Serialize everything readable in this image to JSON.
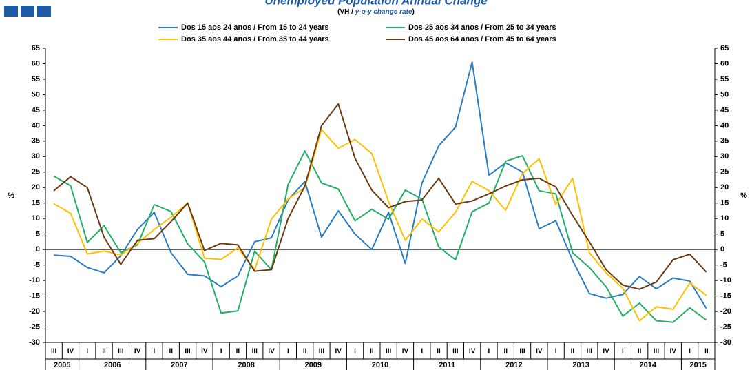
{
  "chart_data": {
    "type": "line",
    "title": "Unemployed Population Annual Change",
    "subtitle_prefix": "(VH / ",
    "subtitle_emph": "y-o-y change rate",
    "subtitle_suffix": ")",
    "ylabel": "%",
    "y2label": "%",
    "categories": [
      "III",
      "IV",
      "I",
      "II",
      "III",
      "IV",
      "I",
      "II",
      "III",
      "IV",
      "I",
      "II",
      "III",
      "IV",
      "I",
      "II",
      "III",
      "IV",
      "I",
      "II",
      "III",
      "IV",
      "I",
      "II",
      "III",
      "IV",
      "I",
      "II",
      "III",
      "IV",
      "I",
      "II",
      "III",
      "IV",
      "I",
      "II",
      "III",
      "IV",
      "I",
      "II"
    ],
    "year_groups": [
      {
        "label": "2005",
        "count": 2
      },
      {
        "label": "2006",
        "count": 4
      },
      {
        "label": "2007",
        "count": 4
      },
      {
        "label": "2008",
        "count": 4
      },
      {
        "label": "2009",
        "count": 4
      },
      {
        "label": "2010",
        "count": 4
      },
      {
        "label": "2011",
        "count": 4
      },
      {
        "label": "2012",
        "count": 4
      },
      {
        "label": "2013",
        "count": 4
      },
      {
        "label": "2014",
        "count": 4
      },
      {
        "label": "2015",
        "count": 2
      }
    ],
    "series": [
      {
        "name": "Dos 15 aos 24 anos / From 15 to 24 years",
        "color": "#2a7bc4",
        "values": [
          -1.8,
          -2.2,
          -5.8,
          -7.5,
          -2,
          6.5,
          12,
          -1,
          -8,
          -8.5,
          -12,
          -8.5,
          2.5,
          3.8,
          16,
          22,
          4,
          12.5,
          5,
          0,
          12,
          -4.5,
          21.5,
          33.5,
          39.5,
          60.5,
          24,
          28,
          25,
          6.7,
          9.3,
          -3.5,
          -14.2,
          -15.7,
          -14.5,
          -8.7,
          -12.7,
          -9.2,
          -10.2,
          -19
        ]
      },
      {
        "name": "Dos 25 aos 34 anos / From 25 to 34 years",
        "color": "#22b064",
        "values": [
          23.7,
          20.6,
          2.3,
          7.7,
          -1,
          1.5,
          14.5,
          12.3,
          1.8,
          -4,
          -20.5,
          -19.8,
          -0.5,
          -6.5,
          21,
          31.8,
          21.5,
          19.5,
          9.3,
          13,
          9.8,
          19.2,
          16.3,
          0.8,
          -3.3,
          12.2,
          15,
          28.5,
          30.3,
          19,
          18,
          -1,
          -5.8,
          -12,
          -21.5,
          -17.3,
          -23,
          -23.5,
          -18.8,
          -22.8
        ]
      },
      {
        "name": "Dos 35 aos 44 anos / From 35 to 44 years",
        "color": "#ffc000",
        "values": [
          14.8,
          11.7,
          -1.4,
          -0.5,
          -1.8,
          2,
          6.5,
          10.4,
          15,
          -2.8,
          -3.2,
          0.5,
          -6.5,
          9.8,
          16.3,
          20,
          38.7,
          32.7,
          35.5,
          31,
          15.5,
          3,
          9.8,
          5.7,
          12,
          22,
          19,
          12.7,
          24.5,
          29.3,
          14.5,
          23,
          -1,
          -7.5,
          -12.5,
          -23,
          -18.5,
          -19.3,
          -10.8,
          -14.8
        ]
      },
      {
        "name": "Dos 45 aos 64 anos / From 45 to 64 years",
        "color": "#6b3a12",
        "values": [
          19,
          23.5,
          20,
          4,
          -4.8,
          3,
          3.5,
          9,
          15,
          -0.3,
          2,
          1.5,
          -7,
          -6.5,
          10,
          20.5,
          40,
          47,
          29.5,
          19.2,
          13.5,
          15.5,
          16,
          23,
          14.7,
          15.7,
          18,
          20.5,
          22.5,
          23,
          20.2,
          11,
          2.5,
          -6.5,
          -11.5,
          -12.8,
          -10.5,
          -3.3,
          -1.5,
          -7.3
        ]
      }
    ],
    "ylim": [
      -30,
      65
    ],
    "yticks": [
      -30,
      -25,
      -20,
      -15,
      -10,
      -5,
      0,
      5,
      10,
      15,
      20,
      25,
      30,
      35,
      40,
      45,
      50,
      55,
      60,
      65
    ],
    "grid": false,
    "legend": "top"
  }
}
